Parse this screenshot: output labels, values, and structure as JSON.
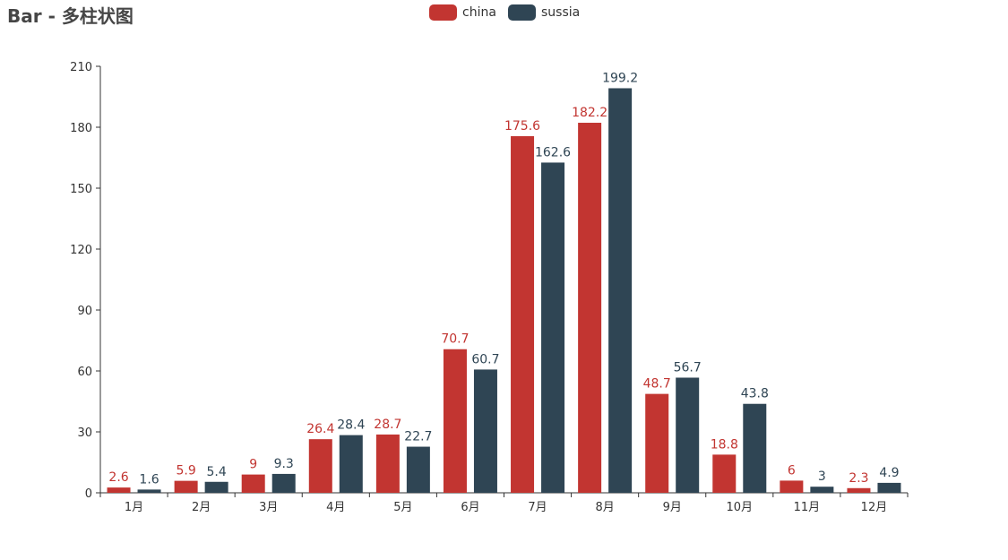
{
  "chart_data": {
    "type": "bar",
    "title": "Bar - 多柱状图",
    "categories": [
      "1月",
      "2月",
      "3月",
      "4月",
      "5月",
      "6月",
      "7月",
      "8月",
      "9月",
      "10月",
      "11月",
      "12月"
    ],
    "series": [
      {
        "name": "china",
        "color": "#c23531",
        "values": [
          2.6,
          5.9,
          9,
          26.4,
          28.7,
          70.7,
          175.6,
          182.2,
          48.7,
          18.8,
          6,
          2.3
        ]
      },
      {
        "name": "sussia",
        "color": "#2f4554",
        "values": [
          1.6,
          5.4,
          9.3,
          28.4,
          22.7,
          60.7,
          162.6,
          199.2,
          56.7,
          43.8,
          3,
          4.9
        ]
      }
    ],
    "ylim": [
      0,
      210
    ],
    "yticks": [
      0,
      30,
      60,
      90,
      120,
      150,
      180,
      210
    ],
    "xlabel": "",
    "ylabel": "",
    "legend_position": "top-center",
    "grid": false
  }
}
